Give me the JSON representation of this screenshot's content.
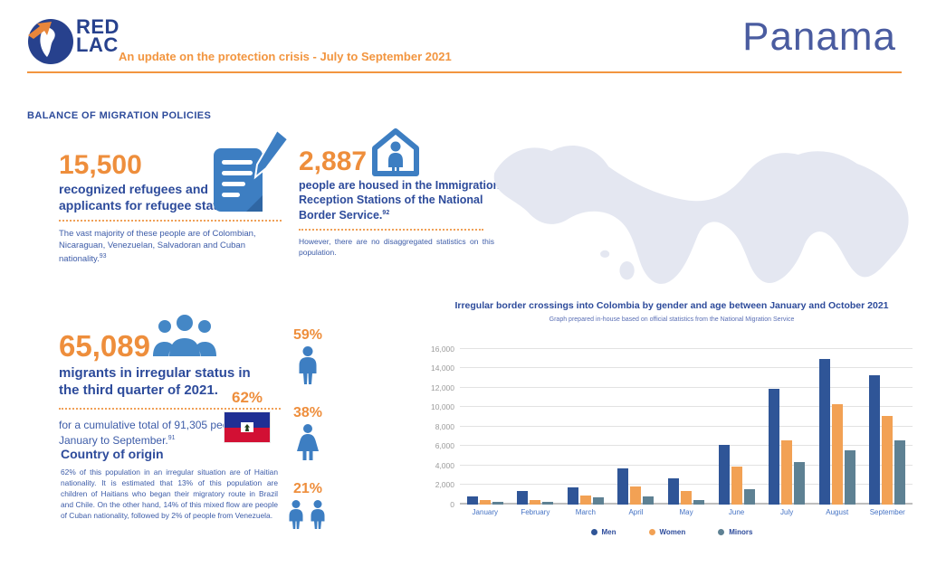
{
  "header": {
    "logo_line1": "RED",
    "logo_line2": "LAC",
    "subtitle": "An update on the protection crisis - July to September 2021",
    "country": "Panama"
  },
  "colors": {
    "accent_orange": "#EE8E3C",
    "heading_blue": "#2D4B9B",
    "body_blue": "#3D5CA8",
    "icon_blue": "#3D7EC2",
    "map_fill": "#E4E7F1"
  },
  "section_title": "BALANCE OF MIGRATION POLICIES",
  "stats": {
    "refugees": {
      "value": "15,500",
      "heading": "recognized refugees and applicants for refugee status.",
      "note": "The vast majority of these people are of Colombian, Nicaraguan, Venezuelan, Salvadoran and Cuban nationality.",
      "note_sup": "93"
    },
    "housed": {
      "value": "2,887",
      "heading": "people are housed in the Immigration Reception Stations of the National Border Service.",
      "heading_sup": "92",
      "note": "However, there are no disaggregated statistics on this population."
    },
    "migrants": {
      "value": "65,089",
      "heading": "migrants in irregular status in the third quarter of 2021.",
      "note": "for a cumulative total of 91,305 people from January to September.",
      "note_sup": "91"
    }
  },
  "demographics": {
    "haitian_pct": "62%",
    "men_pct": "59%",
    "women_pct": "38%",
    "minors_pct": "21%"
  },
  "origin": {
    "heading": "Country of origin",
    "body": "62% of this population in an irregular situation are of Haitian nationality. It is estimated that 13% of this population are children of Haitians who began their migratory route in Brazil and Chile. On the other hand, 14% of this mixed flow are people of Cuban nationality, followed by 2% of people from Venezuela."
  },
  "chart_data": {
    "type": "bar",
    "title": "Irregular border crossings into Colombia by gender and age between January and October 2021",
    "subtitle": "Graph prepared in-house based on official statistics from the National Migration Service",
    "categories": [
      "January",
      "February",
      "March",
      "April",
      "May",
      "June",
      "July",
      "August",
      "September"
    ],
    "series": [
      {
        "name": "Men",
        "color": "#2F5597",
        "values": [
          800,
          1400,
          1750,
          3750,
          2700,
          6100,
          11900,
          15000,
          13300
        ]
      },
      {
        "name": "Women",
        "color": "#F2A154",
        "values": [
          450,
          500,
          900,
          1900,
          1400,
          3900,
          6600,
          10300,
          9100
        ]
      },
      {
        "name": "Minors",
        "color": "#5E8193",
        "values": [
          300,
          300,
          700,
          800,
          500,
          1600,
          4400,
          5600,
          6600
        ]
      }
    ],
    "xlabel": "",
    "ylabel": "",
    "ylim": [
      0,
      16000
    ],
    "ytick_step": 2000,
    "grid": true,
    "legend_position": "bottom"
  }
}
